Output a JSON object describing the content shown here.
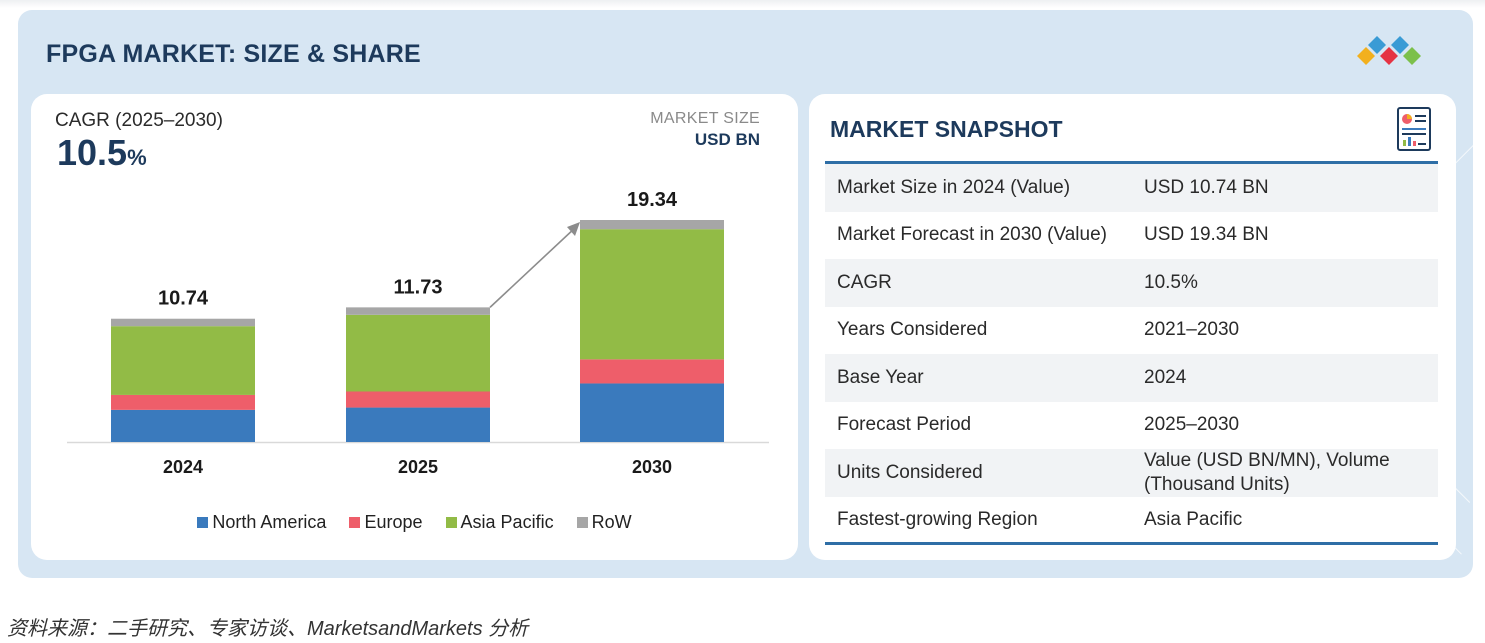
{
  "title": "FPGA MARKET: SIZE & SHARE",
  "cagr": {
    "label": "CAGR (2025–2030)",
    "value": "10.5",
    "unit": "%"
  },
  "market_size": {
    "label": "MARKET SIZE",
    "unit": "USD BN"
  },
  "colors": {
    "north_america": "#3a7abd",
    "europe": "#ee5e6a",
    "asia_pacific": "#92bb46",
    "row": "#a6a6a6",
    "navy": "#1d3a5c"
  },
  "chart_data": {
    "type": "bar",
    "stacked": true,
    "categories": [
      "2024",
      "2025",
      "2030"
    ],
    "totals": [
      10.74,
      11.73,
      19.34
    ],
    "total_labels": [
      "10.74",
      "11.73",
      "19.34"
    ],
    "series": [
      {
        "name": "North America",
        "color": "#3a7abd",
        "values": [
          2.8,
          3.0,
          5.1
        ]
      },
      {
        "name": "Europe",
        "color": "#ee5e6a",
        "values": [
          1.3,
          1.4,
          2.1
        ]
      },
      {
        "name": "Asia Pacific",
        "color": "#92bb46",
        "values": [
          5.99,
          6.68,
          11.34
        ]
      },
      {
        "name": "RoW",
        "color": "#a6a6a6",
        "values": [
          0.65,
          0.65,
          0.8
        ]
      }
    ],
    "ylim": [
      0,
      19.34
    ],
    "title": "FPGA MARKET: SIZE & SHARE",
    "ylabel": "USD BN",
    "legend": "bottom"
  },
  "snapshot": {
    "title": "MARKET SNAPSHOT",
    "rows": [
      {
        "key": "Market Size in 2024 (Value)",
        "value": "USD 10.74 BN"
      },
      {
        "key": "Market Forecast in 2030 (Value)",
        "value": "USD 19.34 BN"
      },
      {
        "key": "CAGR",
        "value": "10.5%"
      },
      {
        "key": "Years Considered",
        "value": "2021–2030"
      },
      {
        "key": "Base Year",
        "value": "2024"
      },
      {
        "key": "Forecast Period",
        "value": "2025–2030"
      },
      {
        "key": "Units Considered",
        "value": "Value (USD BN/MN), Volume (Thousand Units)"
      },
      {
        "key": "Fastest-growing Region",
        "value": "Asia Pacific"
      }
    ]
  },
  "source": "资料来源：二手研究、专家访谈、MarketsandMarkets 分析"
}
